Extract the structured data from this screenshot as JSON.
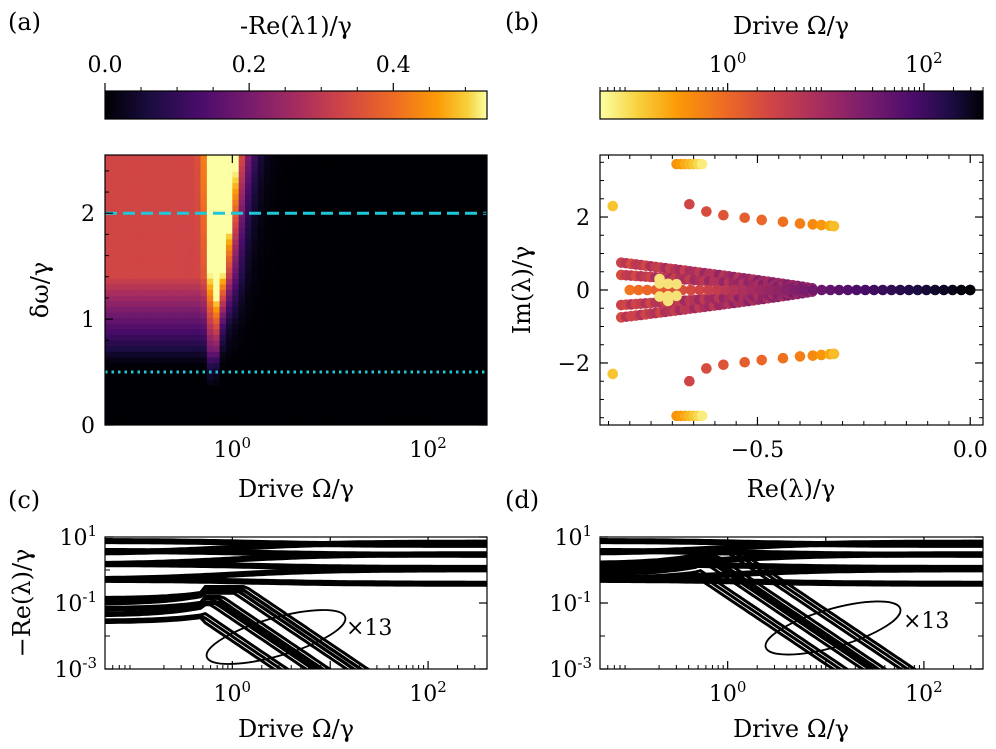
{
  "chart_data": [
    {
      "panel": "(a)",
      "type": "heatmap",
      "colorbar_label": "-Re(λ1)/γ",
      "colorbar_ticks": [
        "0.0",
        "0.2",
        "0.4"
      ],
      "colorbar_tick_values": [
        0.0,
        0.2,
        0.4
      ],
      "colorbar_range": [
        0.0,
        0.53
      ],
      "colormap": "inferno",
      "xlabel": "Drive Ω/γ",
      "xscale": "log",
      "xlim": [
        0.05,
        400
      ],
      "x_ticks": [
        "10^0",
        "10^2"
      ],
      "ylabel": "δω/γ",
      "ylim": [
        0,
        2.55
      ],
      "y_ticks": [
        "0",
        "1",
        "2"
      ],
      "hlines": [
        {
          "y": 2.0,
          "style": "dashed",
          "color": "#1ec8d8"
        },
        {
          "y": 0.5,
          "style": "dotted",
          "color": "#1ec8d8"
        }
      ]
    },
    {
      "panel": "(b)",
      "type": "scatter",
      "colorbar_label": "Drive Ω/γ",
      "colorbar_ticks": [
        "10^0",
        "10^2"
      ],
      "colorbar_scale": "log",
      "colorbar_range": [
        0.05,
        400
      ],
      "colormap": "inferno_r",
      "xlabel": "Re(λ)/γ",
      "ylabel": "Im(λ)/γ",
      "xlim": [
        -0.87,
        0.03
      ],
      "ylim": [
        -3.7,
        3.7
      ],
      "x_ticks": [
        "−0.5",
        "0.0"
      ],
      "y_ticks": [
        "−2",
        "0",
        "2"
      ],
      "series": [
        {
          "name": "top-outer",
          "points": [
            [
              -0.69,
              3.45
            ],
            [
              -0.68,
              3.45
            ],
            [
              -0.67,
              3.45
            ],
            [
              -0.66,
              3.45
            ],
            [
              -0.65,
              3.45
            ],
            [
              -0.64,
              3.45
            ],
            [
              -0.63,
              3.45
            ]
          ]
        },
        {
          "name": "bottom-outer",
          "points": [
            [
              -0.69,
              -3.45
            ],
            [
              -0.68,
              -3.45
            ],
            [
              -0.67,
              -3.45
            ],
            [
              -0.66,
              -3.45
            ],
            [
              -0.65,
              -3.45
            ],
            [
              -0.64,
              -3.45
            ],
            [
              -0.63,
              -3.45
            ]
          ]
        },
        {
          "name": "upper-branch",
          "points": [
            [
              -0.66,
              2.35
            ],
            [
              -0.62,
              2.15
            ],
            [
              -0.58,
              2.05
            ],
            [
              -0.53,
              1.98
            ],
            [
              -0.49,
              1.92
            ],
            [
              -0.44,
              1.87
            ],
            [
              -0.4,
              1.82
            ],
            [
              -0.37,
              1.8
            ],
            [
              -0.35,
              1.78
            ],
            [
              -0.33,
              1.76
            ],
            [
              -0.32,
              1.75
            ]
          ]
        },
        {
          "name": "lower-branch",
          "points": [
            [
              -0.66,
              -2.5
            ],
            [
              -0.62,
              -2.15
            ],
            [
              -0.58,
              -2.05
            ],
            [
              -0.53,
              -1.98
            ],
            [
              -0.49,
              -1.92
            ],
            [
              -0.44,
              -1.87
            ],
            [
              -0.4,
              -1.82
            ],
            [
              -0.37,
              -1.8
            ],
            [
              -0.35,
              -1.78
            ],
            [
              -0.33,
              -1.76
            ],
            [
              -0.32,
              -1.75
            ]
          ]
        },
        {
          "name": "left-edge",
          "points": [
            [
              -0.84,
              2.3
            ],
            [
              -0.84,
              -2.3
            ]
          ]
        }
      ]
    },
    {
      "panel": "(c)",
      "type": "line",
      "xlabel": "Drive Ω/γ",
      "ylabel": "−Re(λ)/γ",
      "xscale": "log",
      "yscale": "log",
      "xlim": [
        0.05,
        400
      ],
      "ylim": [
        0.001,
        10
      ],
      "x_ticks": [
        "10^0",
        "10^2"
      ],
      "y_ticks": [
        "10^-3",
        "10^-1",
        "10^1"
      ],
      "annotation": "×13",
      "series": [
        {
          "name": "fast-bundle",
          "flat_levels": [
            0.4,
            0.7,
            1.2,
            2.0,
            3.0,
            4.5,
            6.0
          ]
        },
        {
          "name": "decaying-modes",
          "low_drive_levels": [
            0.025,
            0.04,
            0.06,
            0.09,
            0.12
          ],
          "decay": "∝ Ω^-2 for Ω > 1"
        }
      ]
    },
    {
      "panel": "(d)",
      "type": "line",
      "xlabel": "Drive Ω/γ",
      "ylabel": "",
      "xscale": "log",
      "yscale": "log",
      "xlim": [
        0.05,
        400
      ],
      "ylim": [
        0.001,
        10
      ],
      "x_ticks": [
        "10^0",
        "10^2"
      ],
      "y_ticks": [
        "10^-3",
        "10^-1",
        "10^1"
      ],
      "annotation": "×13",
      "series": [
        {
          "name": "fast-bundle",
          "flat_levels": [
            0.4,
            0.7,
            1.2,
            2.0,
            3.0,
            4.5,
            6.0
          ]
        },
        {
          "name": "decaying-modes",
          "low_drive_levels": [
            0.5,
            0.7,
            1.0,
            1.4
          ],
          "decay": "∝ Ω^-2 for Ω > 1"
        }
      ]
    }
  ],
  "labels": {
    "a": "(a)",
    "b": "(b)",
    "c": "(c)",
    "d": "(d)"
  }
}
